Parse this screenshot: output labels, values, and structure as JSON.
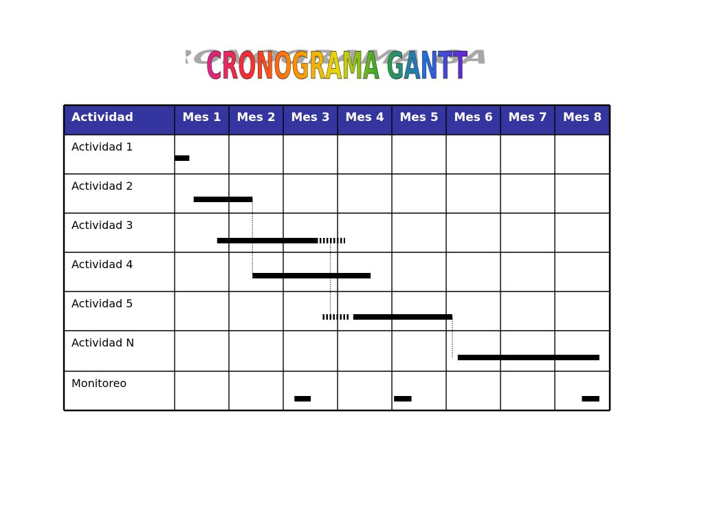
{
  "title": "CRONOGRAMA GANTT",
  "colors": {
    "header_bg": "#3535a0",
    "header_text": "#ffffff",
    "grid": "#000000",
    "bar": "#000000",
    "title_gradient": [
      "#e0208a",
      "#ff2a2a",
      "#ff8c00",
      "#e8d800",
      "#2aa52a",
      "#1f6fe0",
      "#6a1fcf"
    ],
    "title_shadow": "#9a9a9a"
  },
  "chart_data": {
    "type": "table",
    "columns": [
      "Actividad",
      "Mes 1",
      "Mes 2",
      "Mes 3",
      "Mes 4",
      "Mes 5",
      "Mes 6",
      "Mes 7",
      "Mes 8"
    ],
    "rows": [
      "Actividad 1",
      "Actividad 2",
      "Actividad 3",
      "Actividad 4",
      "Actividad 5",
      "Actividad N",
      "Monitoreo"
    ],
    "tasks": [
      {
        "row": 0,
        "start": 0.0,
        "end": 0.27,
        "style": "solid"
      },
      {
        "row": 1,
        "start": 0.35,
        "end": 1.43,
        "style": "solid"
      },
      {
        "row": 2,
        "start": 0.78,
        "end": 2.6,
        "style": "solid"
      },
      {
        "row": 2,
        "start": 2.6,
        "end": 3.13,
        "style": "dashed"
      },
      {
        "row": 3,
        "start": 1.43,
        "end": 3.6,
        "style": "solid"
      },
      {
        "row": 4,
        "start": 2.72,
        "end": 3.2,
        "style": "dashed"
      },
      {
        "row": 4,
        "start": 3.28,
        "end": 5.1,
        "style": "solid"
      },
      {
        "row": 5,
        "start": 5.2,
        "end": 7.8,
        "style": "solid"
      },
      {
        "row": 6,
        "start": 2.2,
        "end": 2.5,
        "style": "solid"
      },
      {
        "row": 6,
        "start": 4.03,
        "end": 4.35,
        "style": "solid"
      },
      {
        "row": 6,
        "start": 7.48,
        "end": 7.8,
        "style": "solid"
      }
    ],
    "dependencies": [
      {
        "from_row": 1,
        "to_row": 3,
        "at": 1.43
      },
      {
        "from_row": 2,
        "to_row": 4,
        "at": 2.86
      },
      {
        "from_row": 4,
        "to_row": 5,
        "at": 5.1
      }
    ]
  }
}
